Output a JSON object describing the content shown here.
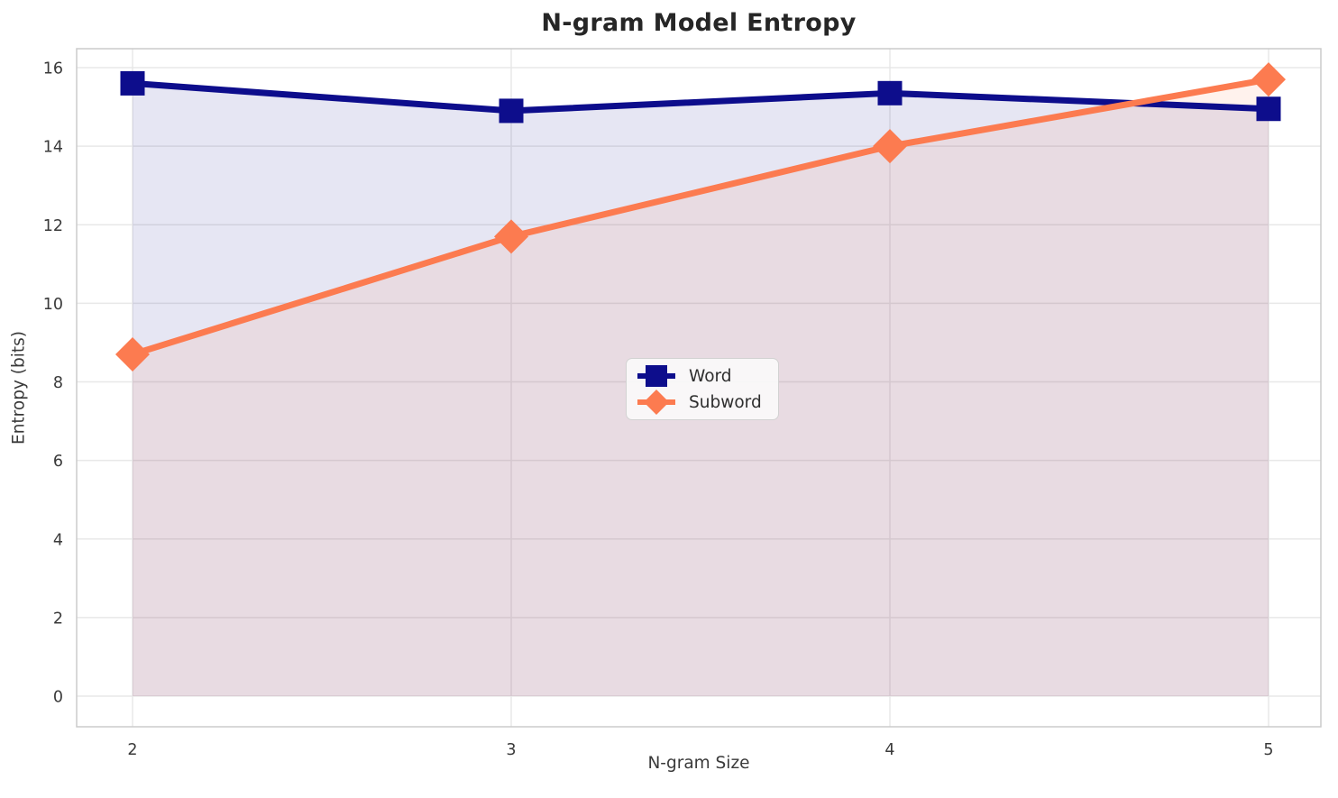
{
  "title": "N-gram Model Entropy",
  "chart_data": {
    "type": "line",
    "title": "N-gram Model Entropy",
    "xlabel": "N-gram Size",
    "ylabel": "Entropy (bits)",
    "x": [
      2,
      3,
      4,
      5
    ],
    "series": [
      {
        "name": "Word",
        "values": [
          15.6,
          14.9,
          15.35,
          14.95
        ],
        "color": "#0d0d8c",
        "marker": "square",
        "fill_to_zero": true,
        "fill_opacity": 0.1
      },
      {
        "name": "Subword",
        "values": [
          8.7,
          11.7,
          14.0,
          15.7
        ],
        "color": "#fc7b50",
        "marker": "diamond",
        "fill_to_zero": true,
        "fill_opacity": 0.1
      }
    ],
    "x_ticks": [
      "2",
      "3",
      "4",
      "5"
    ],
    "y_ticks": [
      "0",
      "2",
      "4",
      "6",
      "8",
      "10",
      "12",
      "14",
      "16"
    ],
    "xlim": [
      1.85,
      5.15
    ],
    "ylim": [
      -0.8,
      16.5
    ],
    "grid": true,
    "legend_position": "center",
    "grid_color": "#e8e8e8",
    "spine_color": "#cbcbcb",
    "tick_label_color": "#3a3a3a",
    "title_color": "#262626"
  }
}
